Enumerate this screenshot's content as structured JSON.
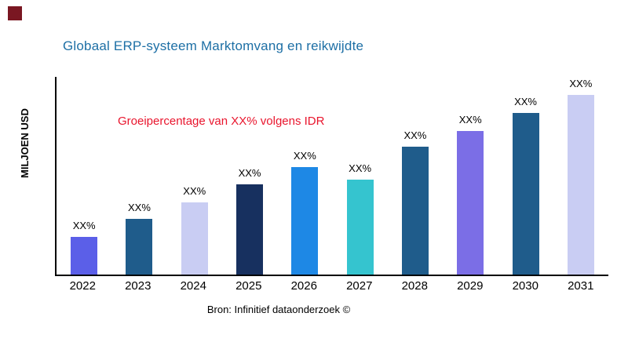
{
  "page": {
    "title": "Globaal ERP-systeem Marktomvang en reikwijdte",
    "annotation": "Groeipercentage van XX% volgens IDR",
    "source": "Bron: Infinitief dataonderzoek ©",
    "ylabel": "MILJOEN USD"
  },
  "colors": {
    "title": "#1d6fa5",
    "annotation": "#e9152d",
    "corner_square": "#7a1722",
    "axis": "#000000",
    "bar_colors": [
      "#5b5fe8",
      "#1f5c8b",
      "#c9cdf3",
      "#17305f",
      "#1e88e5",
      "#35c4cf",
      "#1f5c8b",
      "#7b6ee6",
      "#1f5c8b",
      "#c9cdf3"
    ]
  },
  "chart_data": {
    "type": "bar",
    "categories": [
      "2022",
      "2023",
      "2024",
      "2025",
      "2026",
      "2027",
      "2028",
      "2029",
      "2030",
      "2031"
    ],
    "values": [
      21,
      31,
      40,
      50,
      60,
      53,
      71,
      80,
      90,
      100
    ],
    "bar_labels": [
      "XX%",
      "XX%",
      "XX%",
      "XX%",
      "XX%",
      "XX%",
      "XX%",
      "XX%",
      "XX%",
      "XX%"
    ],
    "title": "Globaal ERP-systeem Marktomvang en reikwijdte",
    "xlabel": "",
    "ylabel": "MILJOEN USD",
    "ylim": [
      0,
      110
    ],
    "grid": false,
    "legend": false,
    "annotation": "Groeipercentage van XX% volgens IDR",
    "value_note": "values are relative heights estimated from pixels; actual magnitudes are masked as XX% in the source image"
  }
}
